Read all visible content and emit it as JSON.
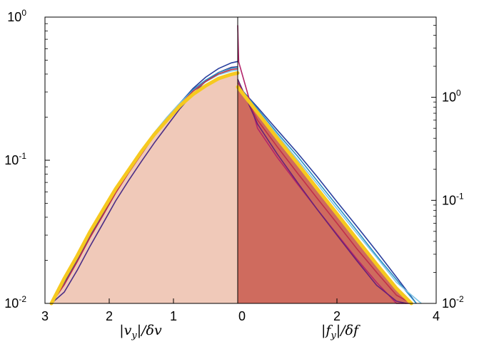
{
  "chart_data": {
    "type": "area",
    "log_scale_y": true,
    "grid": false,
    "left_panel": {
      "xlabel": "|v_y|/δv",
      "xlim": [
        3,
        0
      ],
      "x_reversed": true,
      "xticks": [
        "3",
        "2",
        "1",
        "0"
      ],
      "ylim": [
        0.01,
        1
      ],
      "yticks": [
        {
          "base": "10",
          "exp": "0",
          "value": 1
        },
        {
          "base": "10",
          "exp": "-1",
          "value": 0.1
        },
        {
          "base": "10",
          "exp": "-2",
          "value": 0.01
        }
      ],
      "fill_color": "#f0c9b9",
      "fit_color": "#f6c91f",
      "fit_curve": {
        "x": [
          2.9,
          2.7,
          2.5,
          2.3,
          2.1,
          1.9,
          1.7,
          1.5,
          1.3,
          1.1,
          0.9,
          0.7,
          0.5,
          0.3,
          0.1,
          0.0
        ],
        "y": [
          0.01,
          0.0149,
          0.0214,
          0.0316,
          0.0447,
          0.0631,
          0.0851,
          0.115,
          0.151,
          0.191,
          0.24,
          0.288,
          0.331,
          0.372,
          0.398,
          0.407
        ]
      },
      "series": [
        {
          "color": "#2a3f9e",
          "y": [
            0.01,
            0.014,
            0.02,
            0.0295,
            0.042,
            0.06,
            0.083,
            0.112,
            0.15,
            0.195,
            0.25,
            0.316,
            0.38,
            0.437,
            0.479,
            0.49
          ]
        },
        {
          "color": "#4b2d86",
          "y": [
            0.01,
            0.012,
            0.017,
            0.025,
            0.036,
            0.052,
            0.072,
            0.098,
            0.132,
            0.174,
            0.229,
            0.29,
            0.355,
            0.41,
            0.446,
            0.45
          ]
        },
        {
          "color": "#2b8fc4",
          "y": [
            0.01,
            0.0145,
            0.021,
            0.0308,
            0.044,
            0.062,
            0.086,
            0.117,
            0.155,
            0.2,
            0.251,
            0.31,
            0.363,
            0.41,
            0.44,
            0.446
          ]
        },
        {
          "color": "#7fc6e6",
          "y": [
            0.01,
            0.015,
            0.0216,
            0.0318,
            0.0451,
            0.0636,
            0.087,
            0.118,
            0.156,
            0.2,
            0.25,
            0.303,
            0.352,
            0.395,
            0.42,
            0.427
          ]
        },
        {
          "color": "#c0304a",
          "y": [
            0.01,
            0.0135,
            0.0195,
            0.0288,
            0.041,
            0.059,
            0.0815,
            0.11,
            0.148,
            0.191,
            0.244,
            0.302,
            0.355,
            0.401,
            0.43,
            0.436
          ]
        }
      ]
    },
    "right_panel": {
      "xlabel": "|f_y|/δf",
      "xlim": [
        0,
        4
      ],
      "xticks": [
        "0",
        "2",
        "4"
      ],
      "ylim": [
        0.01,
        6
      ],
      "yticks": [
        {
          "base": "10",
          "exp": "0",
          "value": 1
        },
        {
          "base": "10",
          "exp": "-1",
          "value": 0.1
        },
        {
          "base": "10",
          "exp": "-2",
          "value": 0.01
        }
      ],
      "fill_color": "#cf6b5e",
      "fit_color": "#f6c91f",
      "fit_curve": {
        "x": [
          0.0,
          0.4,
          0.8,
          1.2,
          1.6,
          2.0,
          2.4,
          2.8,
          3.2,
          3.5
        ],
        "y": [
          1.26,
          0.71,
          0.4,
          0.23,
          0.13,
          0.074,
          0.042,
          0.024,
          0.014,
          0.01
        ]
      },
      "series": [
        {
          "color": "#2a3f9e",
          "x": [
            0.0,
            0.4,
            0.8,
            1.2,
            1.6,
            2.0,
            2.4,
            2.8,
            3.2,
            3.6
          ],
          "y": [
            1.3,
            0.8,
            0.48,
            0.29,
            0.17,
            0.097,
            0.056,
            0.032,
            0.018,
            0.01
          ]
        },
        {
          "color": "#2b8fc4",
          "x": [
            0.0,
            0.4,
            0.8,
            1.2,
            1.6,
            2.0,
            2.4,
            2.8,
            3.2,
            3.6
          ],
          "y": [
            1.3,
            0.77,
            0.45,
            0.27,
            0.155,
            0.089,
            0.051,
            0.029,
            0.017,
            0.01
          ]
        },
        {
          "color": "#7fc6e6",
          "x": [
            0.0,
            0.4,
            0.8,
            1.2,
            1.6,
            2.0,
            2.4,
            2.8,
            3.2,
            3.7
          ],
          "y": [
            1.28,
            0.74,
            0.43,
            0.25,
            0.145,
            0.083,
            0.048,
            0.028,
            0.016,
            0.01
          ]
        },
        {
          "color": "#b3246a",
          "x": [
            0.0,
            0.02,
            0.4,
            0.8,
            1.2,
            1.6,
            2.0,
            2.4,
            2.8,
            3.2,
            3.5
          ],
          "y": [
            5.0,
            2.2,
            0.5,
            0.26,
            0.145,
            0.082,
            0.047,
            0.027,
            0.016,
            0.01,
            0.008
          ]
        },
        {
          "color": "#c0304a",
          "x": [
            0.0,
            0.4,
            0.8,
            1.2,
            1.6,
            2.0,
            2.4,
            2.8,
            3.2,
            3.5
          ],
          "y": [
            1.4,
            0.6,
            0.33,
            0.185,
            0.105,
            0.06,
            0.034,
            0.02,
            0.012,
            0.01
          ]
        },
        {
          "color": "#6a2278",
          "x": [
            0.0,
            0.4,
            0.8,
            1.2,
            1.6,
            2.0,
            2.4,
            2.8,
            3.2,
            3.4
          ],
          "y": [
            1.5,
            0.55,
            0.28,
            0.15,
            0.082,
            0.046,
            0.026,
            0.015,
            0.0105,
            0.01
          ]
        }
      ]
    }
  }
}
